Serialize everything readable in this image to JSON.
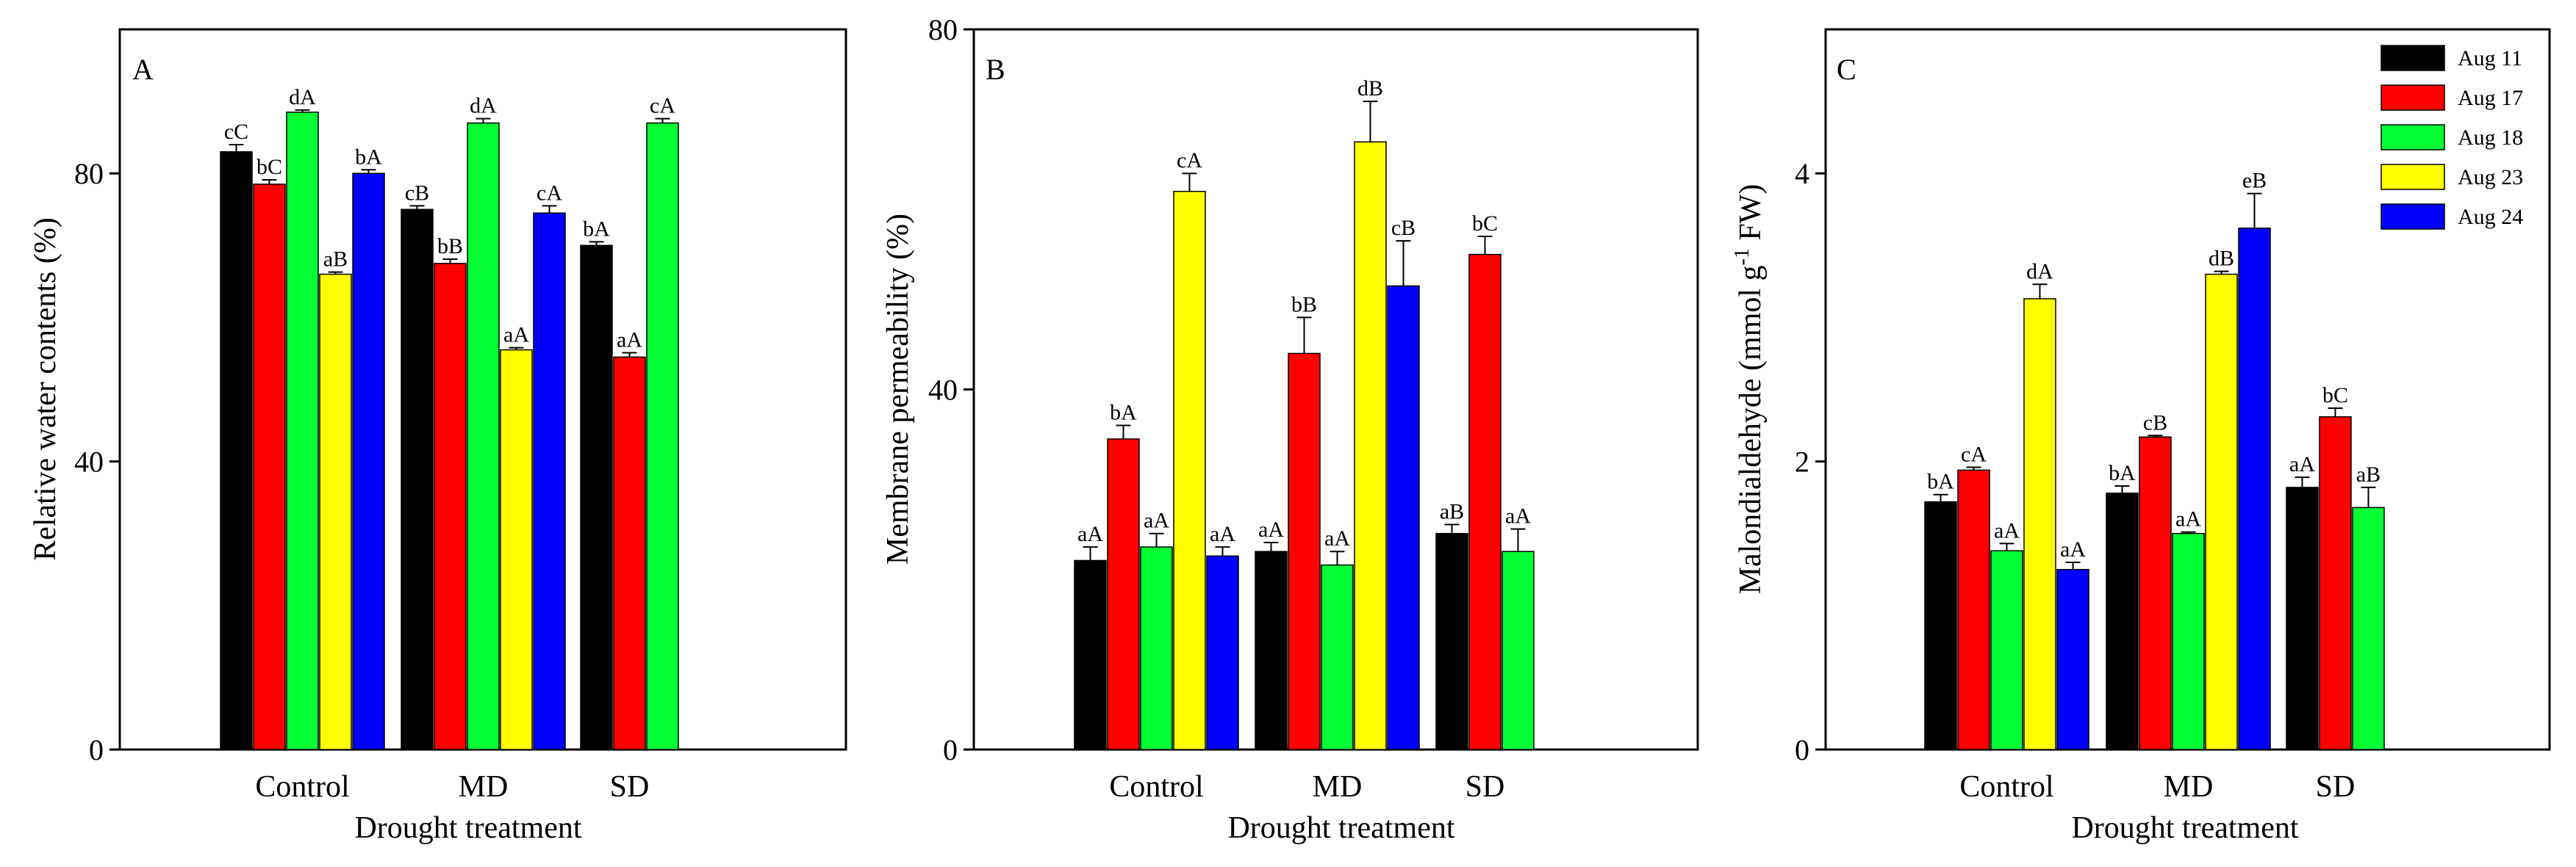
{
  "legend": {
    "entries": [
      {
        "label": "Aug 11",
        "color": "#000000"
      },
      {
        "label": "Aug 17",
        "color": "#ff0000"
      },
      {
        "label": "Aug 18",
        "color": "#00ff33"
      },
      {
        "label": "Aug 23",
        "color": "#ffff00"
      },
      {
        "label": "Aug 24",
        "color": "#0000ff"
      }
    ]
  },
  "chart_data": [
    {
      "type": "bar",
      "panel_label": "A",
      "title": "",
      "xlabel": "Drought treatment",
      "ylabel": "Relative water contents (%)",
      "ylim": [
        0,
        100
      ],
      "yticks": [
        0,
        40,
        80
      ],
      "categories": [
        "Control",
        "MD",
        "SD"
      ],
      "series": [
        {
          "name": "Aug 11",
          "values": [
            83,
            75,
            70
          ],
          "errors": [
            1,
            0.5,
            0.5
          ],
          "labels": [
            "cC",
            "cB",
            "bA"
          ]
        },
        {
          "name": "Aug 17",
          "values": [
            78.5,
            67.5,
            54.5
          ],
          "errors": [
            0.6,
            0.6,
            0.6
          ],
          "labels": [
            "bC",
            "bB",
            "aA"
          ]
        },
        {
          "name": "Aug 18",
          "values": [
            88.5,
            87,
            87
          ],
          "errors": [
            0.3,
            0.6,
            0.6
          ],
          "labels": [
            "dA",
            "dA",
            "cA"
          ]
        },
        {
          "name": "Aug 23",
          "values": [
            66,
            55.5,
            null
          ],
          "errors": [
            0.3,
            0.3,
            null
          ],
          "labels": [
            "aB",
            "aA",
            ""
          ]
        },
        {
          "name": "Aug 24",
          "values": [
            80,
            74.5,
            null
          ],
          "errors": [
            0.5,
            1,
            null
          ],
          "labels": [
            "bA",
            "cA",
            ""
          ]
        }
      ]
    },
    {
      "type": "bar",
      "panel_label": "B",
      "title": "",
      "xlabel": "Drought treatment",
      "ylabel": "Membrane permeability (%)",
      "ylim": [
        0,
        80
      ],
      "yticks": [
        0,
        40,
        80
      ],
      "categories": [
        "Control",
        "MD",
        "SD"
      ],
      "series": [
        {
          "name": "Aug 11",
          "values": [
            21,
            22,
            24
          ],
          "errors": [
            1.5,
            1,
            1
          ],
          "labels": [
            "aA",
            "aA",
            "aB"
          ]
        },
        {
          "name": "Aug 17",
          "values": [
            34.5,
            44,
            55
          ],
          "errors": [
            1.5,
            4,
            2
          ],
          "labels": [
            "bA",
            "bB",
            "bC"
          ]
        },
        {
          "name": "Aug 18",
          "values": [
            22.5,
            20.5,
            22
          ],
          "errors": [
            1.5,
            1.5,
            2.5
          ],
          "labels": [
            "aA",
            "aA",
            "aA"
          ]
        },
        {
          "name": "Aug 23",
          "values": [
            62,
            67.5,
            null
          ],
          "errors": [
            2,
            4.5,
            null
          ],
          "labels": [
            "cA",
            "dB",
            ""
          ]
        },
        {
          "name": "Aug 24",
          "values": [
            21.5,
            51.5,
            null
          ],
          "errors": [
            1,
            5,
            null
          ],
          "labels": [
            "aA",
            "cB",
            ""
          ]
        }
      ]
    },
    {
      "type": "bar",
      "panel_label": "C",
      "title": "",
      "xlabel": "Drought treatment",
      "ylabel": "Malondialdehyde (mmol g-1 FW)",
      "ylabel_parts": {
        "main": "Malondialdehyde (mmol g",
        "sup": "-1",
        "tail": " FW)"
      },
      "ylim": [
        0,
        5
      ],
      "yticks": [
        0,
        2,
        4
      ],
      "categories": [
        "Control",
        "MD",
        "SD"
      ],
      "series": [
        {
          "name": "Aug 11",
          "values": [
            1.72,
            1.78,
            1.82
          ],
          "errors": [
            0.05,
            0.05,
            0.07
          ],
          "labels": [
            "bA",
            "bA",
            "aA"
          ]
        },
        {
          "name": "Aug 17",
          "values": [
            1.94,
            2.17,
            2.31
          ],
          "errors": [
            0.02,
            0.01,
            0.06
          ],
          "labels": [
            "cA",
            "cB",
            "bC"
          ]
        },
        {
          "name": "Aug 18",
          "values": [
            1.38,
            1.5,
            1.68
          ],
          "errors": [
            0.05,
            0.01,
            0.14
          ],
          "labels": [
            "aA",
            "aA",
            "aB"
          ]
        },
        {
          "name": "Aug 23",
          "values": [
            3.13,
            3.3,
            null
          ],
          "errors": [
            0.1,
            0.02,
            null
          ],
          "labels": [
            "dA",
            "dB",
            ""
          ]
        },
        {
          "name": "Aug 24",
          "values": [
            1.25,
            3.62,
            null
          ],
          "errors": [
            0.05,
            0.24,
            null
          ],
          "labels": [
            "aA",
            "eB",
            ""
          ]
        }
      ]
    }
  ]
}
